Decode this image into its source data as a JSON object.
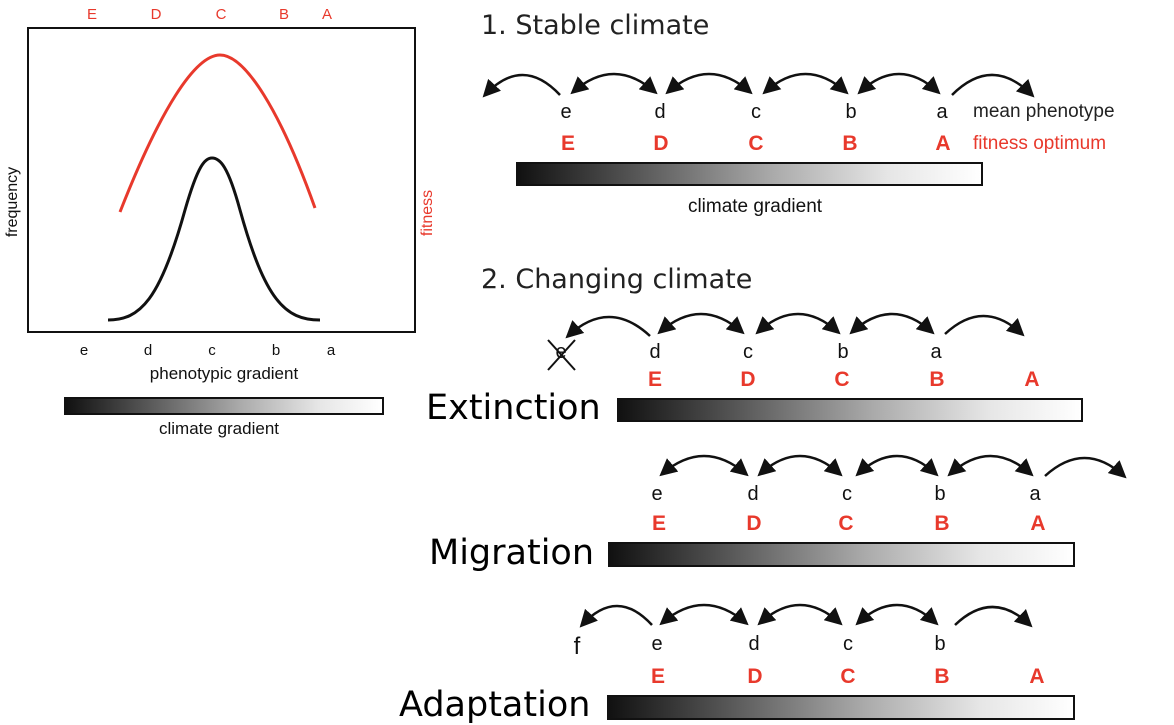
{
  "left_panel": {
    "top_letters": [
      "E",
      "D",
      "C",
      "B",
      "A"
    ],
    "bottom_letters": [
      "e",
      "d",
      "c",
      "b",
      "a"
    ],
    "y_label_left": "frequency",
    "y_label_right": "fitness",
    "x_label": "phenotypic gradient",
    "gradient_label": "climate gradient",
    "colors": {
      "fitness_curve": "#e8392c",
      "frequency_curve": "#111111"
    }
  },
  "stable": {
    "heading": "1. Stable climate",
    "phenotypes": [
      "e",
      "d",
      "c",
      "b",
      "a"
    ],
    "optima": [
      "E",
      "D",
      "C",
      "B",
      "A"
    ],
    "phenotype_legend": "mean phenotype",
    "optimum_legend": "fitness optimum",
    "gradient_label": "climate gradient"
  },
  "changing": {
    "heading": "2. Changing climate",
    "extinction": {
      "label": "Extinction",
      "phenotypes": [
        "e",
        "d",
        "c",
        "b",
        "a"
      ],
      "optima": [
        "E",
        "D",
        "C",
        "B",
        "A"
      ]
    },
    "migration": {
      "label": "Migration",
      "phenotypes": [
        "e",
        "d",
        "c",
        "b",
        "a"
      ],
      "optima": [
        "E",
        "D",
        "C",
        "B",
        "A"
      ]
    },
    "adaptation": {
      "label": "Adaptation",
      "phenotypes": [
        "f",
        "e",
        "d",
        "c",
        "b"
      ],
      "optima": [
        "E",
        "D",
        "C",
        "B",
        "A"
      ]
    }
  },
  "colors": {
    "accent_red": "#e8392c",
    "text_dark": "#111111"
  }
}
